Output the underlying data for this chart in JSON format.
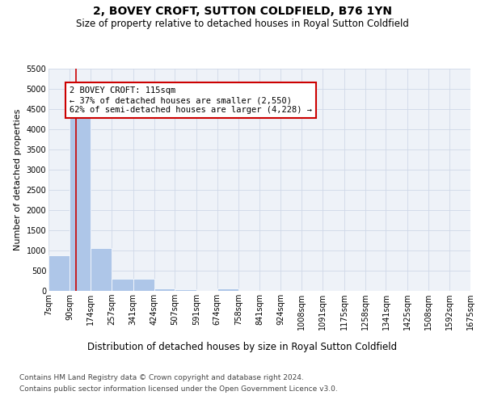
{
  "title": "2, BOVEY CROFT, SUTTON COLDFIELD, B76 1YN",
  "subtitle": "Size of property relative to detached houses in Royal Sutton Coldfield",
  "xlabel": "Distribution of detached houses by size in Royal Sutton Coldfield",
  "ylabel": "Number of detached properties",
  "property_size": 115,
  "annotation_line1": "2 BOVEY CROFT: 115sqm",
  "annotation_line2": "← 37% of detached houses are smaller (2,550)",
  "annotation_line3": "62% of semi-detached houses are larger (4,228) →",
  "footer1": "Contains HM Land Registry data © Crown copyright and database right 2024.",
  "footer2": "Contains public sector information licensed under the Open Government Licence v3.0.",
  "bin_edges": [
    7,
    90,
    174,
    257,
    341,
    424,
    507,
    591,
    674,
    758,
    841,
    924,
    1008,
    1091,
    1175,
    1258,
    1341,
    1425,
    1508,
    1592,
    1675
  ],
  "bar_values": [
    880,
    4540,
    1060,
    295,
    295,
    70,
    50,
    0,
    60,
    0,
    0,
    0,
    0,
    0,
    0,
    0,
    0,
    0,
    0,
    0
  ],
  "bar_color": "#aec6e8",
  "bar_edge_color": "#aec6e8",
  "vline_x": 115,
  "vline_color": "#cc0000",
  "annotation_box_color": "#cc0000",
  "ylim": [
    0,
    5500
  ],
  "yticks": [
    0,
    500,
    1000,
    1500,
    2000,
    2500,
    3000,
    3500,
    4000,
    4500,
    5000,
    5500
  ],
  "grid_color": "#d0d8e8",
  "bg_color": "#eef2f8",
  "fig_bg_color": "#ffffff",
  "title_fontsize": 10,
  "subtitle_fontsize": 8.5,
  "xlabel_fontsize": 8.5,
  "ylabel_fontsize": 8,
  "tick_fontsize": 7,
  "annotation_fontsize": 7.5,
  "footer_fontsize": 6.5
}
